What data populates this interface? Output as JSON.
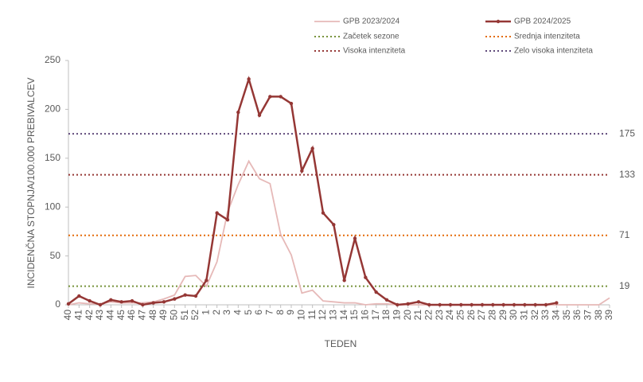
{
  "chart_data": {
    "type": "line",
    "y_label": "INCIDENČNA  STOPNJA/100.000  PREBIVALCEV",
    "x_label": "TEDEN",
    "categories": [
      "40",
      "41",
      "42",
      "43",
      "44",
      "45",
      "46",
      "47",
      "48",
      "49",
      "50",
      "51",
      "52",
      "1",
      "2",
      "3",
      "4",
      "5",
      "6",
      "7",
      "8",
      "9",
      "10",
      "11",
      "12",
      "13",
      "14",
      "15",
      "16",
      "17",
      "18",
      "19",
      "20",
      "21",
      "22",
      "23",
      "24",
      "25",
      "26",
      "27",
      "28",
      "29",
      "30",
      "31",
      "32",
      "33",
      "34",
      "35",
      "36",
      "37",
      "38",
      "39"
    ],
    "series": [
      {
        "name": "GPB 2023/2024",
        "color": "#e6b9b8",
        "values": [
          0,
          2,
          1,
          1,
          3,
          2,
          2,
          2,
          3,
          6,
          10,
          29,
          30,
          19,
          44,
          95,
          123,
          147,
          129,
          124,
          72,
          51,
          12,
          15,
          4,
          3,
          2,
          2,
          0,
          1,
          1,
          0,
          0,
          0,
          0,
          0,
          0,
          0,
          0,
          0,
          0,
          0,
          0,
          0,
          0,
          0,
          0,
          0,
          0,
          0,
          0,
          7
        ]
      },
      {
        "name": "GPB 2024/2025",
        "color": "#953735",
        "values": [
          1,
          9,
          4,
          0,
          5,
          3,
          4,
          0,
          2,
          3,
          6,
          10,
          9,
          25,
          94,
          87,
          197,
          231,
          194,
          213,
          213,
          206,
          137,
          160,
          94,
          82,
          25,
          68,
          28,
          13,
          5,
          0,
          1,
          3,
          0,
          0,
          0,
          0,
          0,
          0,
          0,
          0,
          0,
          0,
          0,
          0,
          2,
          null,
          null,
          null,
          null,
          null
        ]
      }
    ],
    "thresholds": [
      {
        "name": "Začetek sezone",
        "value": 19,
        "color": "#77933c",
        "label_color": "#7f7f00"
      },
      {
        "name": "Srednja intenziteta",
        "value": 71,
        "color": "#e46c0a",
        "label_color": "#e46c0a"
      },
      {
        "name": "Visoka intenziteta",
        "value": 133,
        "color": "#953735",
        "label_color": "#a0205a"
      },
      {
        "name": "Zelo visoka intenziteta",
        "value": 175,
        "color": "#604a7b",
        "label_color": "#604a7b"
      }
    ],
    "ylim": [
      0,
      250
    ],
    "yticks": [
      0,
      50,
      100,
      150,
      200,
      250
    ]
  }
}
